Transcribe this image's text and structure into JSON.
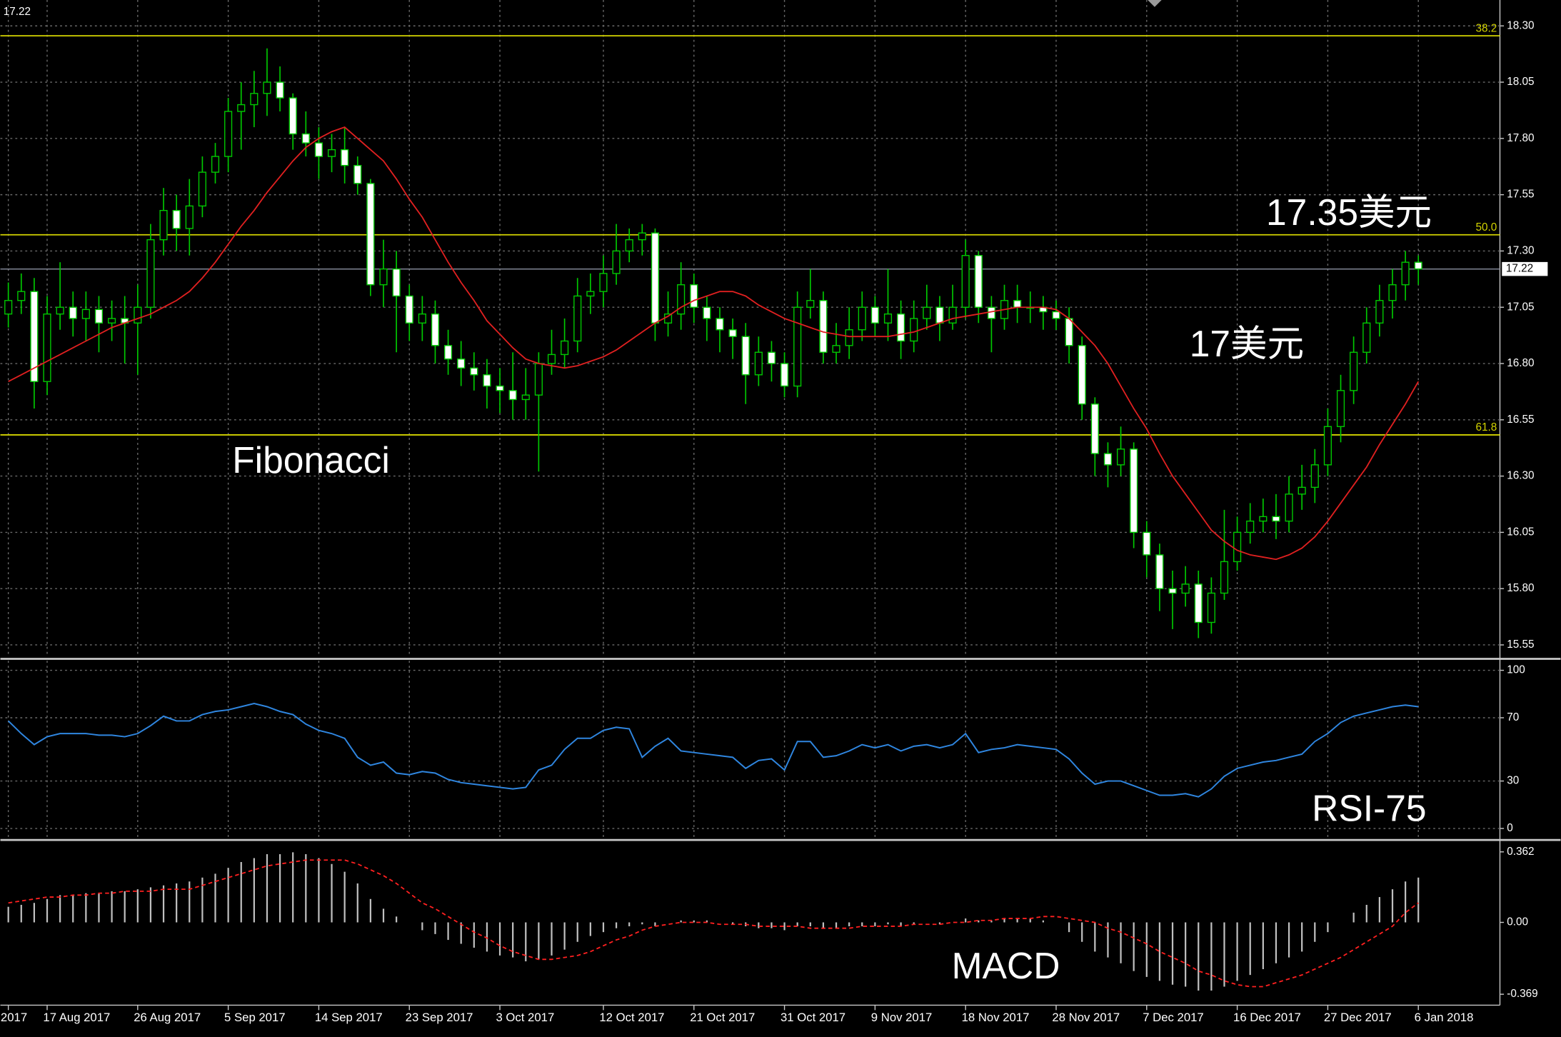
{
  "chart_data": [
    {
      "type": "candlestick",
      "last_price": 17.22,
      "ylim": [
        15.497,
        18.415
      ],
      "yticks": [
        {
          "value": 18.3,
          "label": "18.30"
        },
        18.05,
        {
          "value": 17.8,
          "label": "17.80"
        },
        17.55,
        {
          "value": 17.3,
          "label": "17.30"
        },
        17.05,
        {
          "value": 16.8,
          "label": "16.80"
        },
        16.55,
        {
          "value": 16.3,
          "label": "16.30"
        },
        16.05,
        {
          "value": 15.8,
          "label": "15.80"
        },
        15.55
      ],
      "grid": true,
      "up_color": "#000000",
      "down_color": "#ffffff",
      "wick_color": "#00c800",
      "fib_color": "#d4d400",
      "fib_levels": [
        {
          "value": 18.256,
          "label": "38.2"
        },
        {
          "value": 17.372,
          "label": "50.0"
        },
        {
          "value": 16.483,
          "label": "61.8"
        }
      ],
      "annotations": [
        "17.35美元",
        "17美元",
        "Fibonacci"
      ],
      "open": [
        17.02,
        17.08,
        17.12,
        16.72,
        17.02,
        17.05,
        17.0,
        17.04,
        16.98,
        17.0,
        16.98,
        17.05,
        17.35,
        17.48,
        17.4,
        17.5,
        17.65,
        17.72,
        17.92,
        17.95,
        18.0,
        18.05,
        17.98,
        17.82,
        17.78,
        17.72,
        17.75,
        17.68,
        17.6,
        17.15,
        17.22,
        17.1,
        16.98,
        17.02,
        16.88,
        16.82,
        16.78,
        16.75,
        16.7,
        16.68,
        16.64,
        16.66,
        16.8,
        16.84,
        16.9,
        17.1,
        17.12,
        17.2,
        17.3,
        17.35,
        17.38,
        16.98,
        17.02,
        17.15,
        17.05,
        17.0,
        16.95,
        16.92,
        16.75,
        16.85,
        16.8,
        16.7,
        17.05,
        17.08,
        16.85,
        16.88,
        16.95,
        17.05,
        16.98,
        17.02,
        16.9,
        17.0,
        17.05,
        16.98,
        17.05,
        17.28,
        17.05,
        17.0,
        17.08,
        17.05,
        17.05,
        17.03,
        17.0,
        16.88,
        16.62,
        16.4,
        16.35,
        16.42,
        16.05,
        15.95,
        15.8,
        15.78,
        15.82,
        15.65,
        15.78,
        15.92,
        16.05,
        16.1,
        16.12,
        16.1,
        16.22,
        16.25,
        16.35,
        16.52,
        16.68,
        16.85,
        16.98,
        17.08,
        17.15,
        17.25
      ],
      "high": [
        17.16,
        17.2,
        17.18,
        17.1,
        17.25,
        17.12,
        17.12,
        17.1,
        17.08,
        17.1,
        17.15,
        17.42,
        17.58,
        17.55,
        17.62,
        17.72,
        17.78,
        17.98,
        18.05,
        18.1,
        18.2,
        18.12,
        18.0,
        17.92,
        17.85,
        17.82,
        17.85,
        17.72,
        17.62,
        17.35,
        17.3,
        17.15,
        17.1,
        17.08,
        16.95,
        16.9,
        16.85,
        16.82,
        16.78,
        16.85,
        16.78,
        16.85,
        16.95,
        17.0,
        17.18,
        17.2,
        17.28,
        17.42,
        17.4,
        17.42,
        17.4,
        17.12,
        17.25,
        17.2,
        17.1,
        17.05,
        17.0,
        16.98,
        16.92,
        16.9,
        16.85,
        17.12,
        17.22,
        17.12,
        16.98,
        17.05,
        17.12,
        17.1,
        17.22,
        17.08,
        17.08,
        17.15,
        17.1,
        17.15,
        17.35,
        17.3,
        17.1,
        17.15,
        17.15,
        17.12,
        17.1,
        17.08,
        17.05,
        16.92,
        16.65,
        16.45,
        16.52,
        16.45,
        16.1,
        16.0,
        15.88,
        15.9,
        15.88,
        15.85,
        16.15,
        16.12,
        16.18,
        16.2,
        16.22,
        16.3,
        16.35,
        16.42,
        16.6,
        16.75,
        16.92,
        17.05,
        17.15,
        17.22,
        17.3,
        17.28
      ],
      "low": [
        16.96,
        17.02,
        16.6,
        16.66,
        16.95,
        16.92,
        16.9,
        16.85,
        16.9,
        16.8,
        16.75,
        17.0,
        17.28,
        17.3,
        17.28,
        17.45,
        17.6,
        17.65,
        17.75,
        17.85,
        17.9,
        17.92,
        17.75,
        17.72,
        17.62,
        17.65,
        17.6,
        17.55,
        17.1,
        17.05,
        16.85,
        16.9,
        16.9,
        16.8,
        16.75,
        16.7,
        16.68,
        16.6,
        16.58,
        16.55,
        16.55,
        16.32,
        16.75,
        16.78,
        16.85,
        17.02,
        17.05,
        17.15,
        17.25,
        17.28,
        16.9,
        16.92,
        16.95,
        16.98,
        16.9,
        16.85,
        16.82,
        16.62,
        16.7,
        16.72,
        16.65,
        16.65,
        17.0,
        16.8,
        16.8,
        16.82,
        16.9,
        16.92,
        16.9,
        16.82,
        16.85,
        16.95,
        16.9,
        16.95,
        17.0,
        16.98,
        16.85,
        16.95,
        16.98,
        16.98,
        16.95,
        16.95,
        16.8,
        16.55,
        16.3,
        16.25,
        16.3,
        15.98,
        15.85,
        15.7,
        15.62,
        15.72,
        15.58,
        15.6,
        15.75,
        15.88,
        16.0,
        16.05,
        16.02,
        16.05,
        16.15,
        16.18,
        16.3,
        16.45,
        16.62,
        16.8,
        16.92,
        17.0,
        17.08,
        17.15
      ],
      "close": [
        17.08,
        17.12,
        16.72,
        17.02,
        17.05,
        17.0,
        17.04,
        16.98,
        17.0,
        16.98,
        17.05,
        17.35,
        17.48,
        17.4,
        17.5,
        17.65,
        17.72,
        17.92,
        17.95,
        18.0,
        18.05,
        17.98,
        17.82,
        17.78,
        17.72,
        17.75,
        17.68,
        17.6,
        17.15,
        17.22,
        17.1,
        16.98,
        17.02,
        16.88,
        16.82,
        16.78,
        16.75,
        16.7,
        16.68,
        16.64,
        16.66,
        16.8,
        16.84,
        16.9,
        17.1,
        17.12,
        17.2,
        17.3,
        17.35,
        17.38,
        16.98,
        17.02,
        17.15,
        17.05,
        17.0,
        16.95,
        16.92,
        16.75,
        16.85,
        16.8,
        16.7,
        17.05,
        17.08,
        16.85,
        16.88,
        16.95,
        17.05,
        16.98,
        17.02,
        16.9,
        17.0,
        17.05,
        16.98,
        17.05,
        17.28,
        17.05,
        17.0,
        17.08,
        17.05,
        17.05,
        17.03,
        17.0,
        16.88,
        16.62,
        16.4,
        16.35,
        16.42,
        16.05,
        15.95,
        15.8,
        15.78,
        15.82,
        15.65,
        15.78,
        15.92,
        16.05,
        16.1,
        16.12,
        16.1,
        16.22,
        16.25,
        16.35,
        16.52,
        16.68,
        16.85,
        16.98,
        17.08,
        17.15,
        17.25,
        17.22
      ],
      "overlay": {
        "color": "#e02020",
        "values": [
          16.72,
          16.75,
          16.78,
          16.81,
          16.84,
          16.87,
          16.9,
          16.93,
          16.96,
          16.98,
          17.0,
          17.02,
          17.05,
          17.08,
          17.12,
          17.18,
          17.25,
          17.33,
          17.41,
          17.48,
          17.56,
          17.63,
          17.7,
          17.76,
          17.8,
          17.83,
          17.85,
          17.8,
          17.75,
          17.7,
          17.62,
          17.53,
          17.45,
          17.35,
          17.25,
          17.16,
          17.08,
          16.99,
          16.93,
          16.87,
          16.82,
          16.8,
          16.79,
          16.78,
          16.79,
          16.81,
          16.83,
          16.86,
          16.9,
          16.94,
          16.98,
          17.01,
          17.05,
          17.08,
          17.1,
          17.12,
          17.12,
          17.1,
          17.06,
          17.03,
          17.0,
          16.98,
          16.96,
          16.94,
          16.93,
          16.92,
          16.92,
          16.92,
          16.92,
          16.93,
          16.94,
          16.96,
          16.98,
          17.0,
          17.01,
          17.02,
          17.03,
          17.04,
          17.05,
          17.05,
          17.05,
          17.04,
          17.0,
          16.94,
          16.88,
          16.8,
          16.7,
          16.6,
          16.51,
          16.4,
          16.3,
          16.22,
          16.14,
          16.06,
          16.01,
          15.97,
          15.95,
          15.94,
          15.93,
          15.95,
          15.98,
          16.03,
          16.1,
          16.18,
          16.26,
          16.34,
          16.44,
          16.53,
          16.62,
          16.72
        ]
      }
    },
    {
      "type": "line",
      "label": "RSI-75",
      "color": "#2f86e0",
      "ylim": [
        -6,
        106
      ],
      "yticks": [
        100,
        70,
        30,
        0
      ],
      "grid": true,
      "values": [
        68,
        60,
        53,
        58,
        60,
        60,
        60,
        59,
        59,
        58,
        60,
        65,
        71,
        68,
        68,
        72,
        74,
        75,
        77,
        79,
        77,
        74,
        72,
        66,
        62,
        60,
        57,
        45,
        40,
        42,
        35,
        34,
        36,
        35,
        31,
        29,
        28,
        27,
        26,
        25,
        26,
        37,
        40,
        50,
        57,
        57,
        62,
        64,
        63,
        45,
        52,
        57,
        49,
        48,
        47,
        46,
        45,
        38,
        43,
        44,
        37,
        55,
        55,
        45,
        46,
        49,
        53,
        51,
        53,
        49,
        52,
        53,
        51,
        53,
        60,
        48,
        50,
        51,
        53,
        52,
        51,
        50,
        44,
        35,
        28,
        30,
        30,
        27,
        24,
        21,
        21,
        22,
        20,
        25,
        33,
        38,
        40,
        42,
        43,
        45,
        47,
        55,
        60,
        67,
        71,
        73,
        75,
        77,
        78,
        77
      ]
    },
    {
      "type": "bar",
      "label": "MACD",
      "color": "#c0c0c0",
      "ylim": [
        -0.425,
        0.413
      ],
      "yticks": [
        0.362,
        {
          "value": 0,
          "label": "0.00"
        },
        -0.369
      ],
      "grid": false,
      "values": [
        0.08,
        0.09,
        0.1,
        0.12,
        0.14,
        0.14,
        0.15,
        0.15,
        0.16,
        0.16,
        0.17,
        0.18,
        0.19,
        0.2,
        0.21,
        0.23,
        0.25,
        0.28,
        0.31,
        0.33,
        0.35,
        0.35,
        0.36,
        0.35,
        0.33,
        0.3,
        0.26,
        0.2,
        0.12,
        0.07,
        0.03,
        0.0,
        -0.04,
        -0.06,
        -0.09,
        -0.11,
        -0.13,
        -0.15,
        -0.17,
        -0.18,
        -0.2,
        -0.19,
        -0.17,
        -0.14,
        -0.1,
        -0.07,
        -0.05,
        -0.03,
        -0.02,
        -0.01,
        -0.02,
        0.0,
        0.01,
        0.01,
        0.01,
        0.0,
        -0.01,
        -0.02,
        -0.03,
        -0.03,
        -0.04,
        -0.02,
        -0.02,
        -0.03,
        -0.03,
        -0.02,
        -0.02,
        -0.02,
        -0.01,
        -0.02,
        -0.01,
        0.0,
        -0.01,
        0.0,
        0.02,
        0.01,
        0.01,
        0.02,
        0.02,
        0.02,
        0.01,
        0.0,
        -0.05,
        -0.1,
        -0.15,
        -0.18,
        -0.21,
        -0.25,
        -0.28,
        -0.3,
        -0.32,
        -0.33,
        -0.35,
        -0.35,
        -0.33,
        -0.3,
        -0.27,
        -0.24,
        -0.21,
        -0.18,
        -0.15,
        -0.1,
        -0.05,
        0.0,
        0.05,
        0.09,
        0.13,
        0.17,
        0.21,
        0.23
      ],
      "signal": {
        "color": "#ff2020",
        "values": [
          0.1,
          0.11,
          0.12,
          0.13,
          0.13,
          0.14,
          0.14,
          0.15,
          0.15,
          0.16,
          0.16,
          0.16,
          0.17,
          0.17,
          0.17,
          0.19,
          0.21,
          0.23,
          0.25,
          0.27,
          0.29,
          0.3,
          0.31,
          0.32,
          0.32,
          0.32,
          0.32,
          0.3,
          0.27,
          0.24,
          0.2,
          0.15,
          0.1,
          0.07,
          0.03,
          -0.01,
          -0.05,
          -0.08,
          -0.12,
          -0.15,
          -0.17,
          -0.19,
          -0.19,
          -0.18,
          -0.17,
          -0.15,
          -0.12,
          -0.09,
          -0.07,
          -0.04,
          -0.02,
          -0.01,
          0.0,
          0.0,
          0.0,
          -0.01,
          -0.01,
          -0.01,
          -0.02,
          -0.02,
          -0.02,
          -0.02,
          -0.03,
          -0.03,
          -0.03,
          -0.03,
          -0.02,
          -0.02,
          -0.02,
          -0.02,
          -0.01,
          -0.01,
          -0.01,
          0.0,
          0.0,
          0.01,
          0.01,
          0.02,
          0.02,
          0.02,
          0.03,
          0.03,
          0.02,
          0.01,
          0.0,
          -0.03,
          -0.05,
          -0.08,
          -0.11,
          -0.15,
          -0.18,
          -0.21,
          -0.25,
          -0.27,
          -0.3,
          -0.32,
          -0.33,
          -0.33,
          -0.31,
          -0.29,
          -0.27,
          -0.24,
          -0.21,
          -0.18,
          -0.14,
          -0.1,
          -0.06,
          -0.02,
          0.05,
          0.1
        ]
      },
      "categories": [
        "2017",
        null,
        null,
        "17 Aug 2017",
        null,
        null,
        null,
        null,
        null,
        null,
        "26 Aug 2017",
        null,
        null,
        null,
        null,
        null,
        null,
        "5 Sep 2017",
        null,
        null,
        null,
        null,
        null,
        null,
        "14 Sep 2017",
        null,
        null,
        null,
        null,
        null,
        null,
        "23 Sep 2017",
        null,
        null,
        null,
        null,
        null,
        null,
        "3 Oct 2017",
        null,
        null,
        null,
        null,
        null,
        null,
        null,
        "12 Oct 2017",
        null,
        null,
        null,
        null,
        null,
        null,
        "21 Oct 2017",
        null,
        null,
        null,
        null,
        null,
        null,
        "31 Oct 2017",
        null,
        null,
        null,
        null,
        null,
        null,
        "9 Nov 2017",
        null,
        null,
        null,
        null,
        null,
        null,
        "18 Nov 2017",
        null,
        null,
        null,
        null,
        null,
        null,
        "28 Nov 2017",
        null,
        null,
        null,
        null,
        null,
        null,
        "7 Dec 2017",
        null,
        null,
        null,
        null,
        null,
        null,
        "16 Dec 2017",
        null,
        null,
        null,
        null,
        null,
        null,
        "27 Dec 2017",
        null,
        null,
        null,
        null,
        null,
        null,
        "6 Jan 2018"
      ]
    }
  ]
}
